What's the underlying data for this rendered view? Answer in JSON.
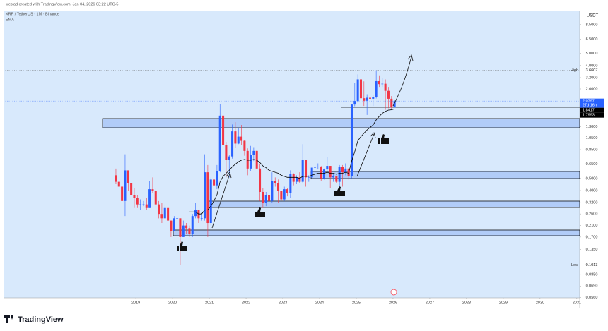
{
  "header": {
    "credit": "wesiad created with TradingView.com, Jan 04, 2026 03:22 UTC-5",
    "symbol": "XRP / TetherUS · 1M · Binance"
  },
  "footer": {
    "brand": "TradingView"
  },
  "chart_data": {
    "type": "candlestick",
    "currency": "USDT",
    "log_scale": true,
    "x": [
      "2018-06",
      "2018-07",
      "2018-08",
      "2018-09",
      "2018-10",
      "2018-11",
      "2018-12",
      "2019-01",
      "2019-02",
      "2019-03",
      "2019-04",
      "2019-05",
      "2019-06",
      "2019-07",
      "2019-08",
      "2019-09",
      "2019-10",
      "2019-11",
      "2019-12",
      "2020-01",
      "2020-02",
      "2020-03",
      "2020-04",
      "2020-05",
      "2020-06",
      "2020-07",
      "2020-08",
      "2020-09",
      "2020-10",
      "2020-11",
      "2020-12",
      "2021-01",
      "2021-02",
      "2021-03",
      "2021-04",
      "2021-05",
      "2021-06",
      "2021-07",
      "2021-08",
      "2021-09",
      "2021-10",
      "2021-11",
      "2021-12",
      "2022-01",
      "2022-02",
      "2022-03",
      "2022-04",
      "2022-05",
      "2022-06",
      "2022-07",
      "2022-08",
      "2022-09",
      "2022-10",
      "2022-11",
      "2022-12",
      "2023-01",
      "2023-02",
      "2023-03",
      "2023-04",
      "2023-05",
      "2023-06",
      "2023-07",
      "2023-08",
      "2023-09",
      "2023-10",
      "2023-11",
      "2023-12",
      "2024-01",
      "2024-02",
      "2024-03",
      "2024-04",
      "2024-05",
      "2024-06",
      "2024-07",
      "2024-08",
      "2024-09",
      "2024-10",
      "2024-11",
      "2024-12",
      "2025-01",
      "2025-02",
      "2025-03",
      "2025-04",
      "2025-05",
      "2025-06",
      "2025-07",
      "2025-08",
      "2025-09",
      "2025-10",
      "2025-11",
      "2025-12",
      "2026-01"
    ],
    "open": [
      0.53,
      0.47,
      0.43,
      0.33,
      0.58,
      0.46,
      0.37,
      0.35,
      0.31,
      0.31,
      0.31,
      0.29,
      0.41,
      0.4,
      0.31,
      0.26,
      0.24,
      0.29,
      0.23,
      0.19,
      0.24,
      0.24,
      0.17,
      0.21,
      0.2,
      0.18,
      0.25,
      0.28,
      0.24,
      0.24,
      0.56,
      0.22,
      0.49,
      0.44,
      0.57,
      1.59,
      0.92,
      0.7,
      0.75,
      1.19,
      0.95,
      1.08,
      1.0,
      0.83,
      0.6,
      0.77,
      0.83,
      0.6,
      0.39,
      0.32,
      0.37,
      0.33,
      0.48,
      0.46,
      0.4,
      0.34,
      0.41,
      0.38,
      0.54,
      0.47,
      0.51,
      0.47,
      0.7,
      0.51,
      0.51,
      0.61,
      0.62,
      0.62,
      0.5,
      0.59,
      0.63,
      0.51,
      0.52,
      0.47,
      0.62,
      0.56,
      0.6,
      0.52,
      1.95,
      2.08,
      3.1,
      2.19,
      2.09,
      2.21,
      2.17,
      2.23,
      3.0,
      2.84,
      2.86,
      2.51,
      2.17,
      1.85
    ],
    "high": [
      0.6,
      0.51,
      0.43,
      0.78,
      0.58,
      0.56,
      0.42,
      0.37,
      0.34,
      0.33,
      0.35,
      0.48,
      0.51,
      0.42,
      0.33,
      0.32,
      0.31,
      0.31,
      0.23,
      0.25,
      0.35,
      0.24,
      0.23,
      0.22,
      0.21,
      0.26,
      0.32,
      0.28,
      0.26,
      0.78,
      0.64,
      0.51,
      0.65,
      0.64,
      1.96,
      1.76,
      0.98,
      0.77,
      1.35,
      1.41,
      1.27,
      1.34,
      1.02,
      0.87,
      0.91,
      0.89,
      0.84,
      0.65,
      0.42,
      0.39,
      0.38,
      0.56,
      0.51,
      0.49,
      0.4,
      0.43,
      0.42,
      0.58,
      0.55,
      0.53,
      0.56,
      0.94,
      0.7,
      0.53,
      0.59,
      0.74,
      0.66,
      0.63,
      0.6,
      0.74,
      0.63,
      0.55,
      0.52,
      0.64,
      0.64,
      0.66,
      0.6,
      1.98,
      2.9,
      3.4,
      3.15,
      2.99,
      2.36,
      2.65,
      2.34,
      3.6607,
      3.34,
      3.18,
      3.1,
      2.7,
      2.28,
      2.11
    ],
    "low": [
      0.45,
      0.42,
      0.25,
      0.25,
      0.4,
      0.35,
      0.29,
      0.29,
      0.28,
      0.3,
      0.28,
      0.29,
      0.38,
      0.29,
      0.24,
      0.22,
      0.24,
      0.2,
      0.17,
      0.19,
      0.23,
      0.1013,
      0.17,
      0.18,
      0.17,
      0.17,
      0.24,
      0.22,
      0.23,
      0.23,
      0.17,
      0.21,
      0.36,
      0.41,
      0.56,
      0.65,
      0.51,
      0.51,
      0.72,
      0.88,
      0.94,
      0.93,
      0.76,
      0.53,
      0.57,
      0.69,
      0.59,
      0.33,
      0.29,
      0.3,
      0.32,
      0.32,
      0.43,
      0.32,
      0.33,
      0.33,
      0.36,
      0.35,
      0.44,
      0.45,
      0.46,
      0.46,
      0.43,
      0.47,
      0.5,
      0.59,
      0.59,
      0.48,
      0.49,
      0.56,
      0.42,
      0.47,
      0.46,
      0.38,
      0.43,
      0.53,
      0.49,
      0.5,
      1.89,
      2.02,
      1.77,
      1.9,
      1.61,
      2.07,
      1.9,
      2.18,
      2.7,
      2.7,
      1.77,
      1.82,
      1.8,
      1.84
    ],
    "close": [
      0.47,
      0.43,
      0.33,
      0.58,
      0.46,
      0.37,
      0.35,
      0.31,
      0.31,
      0.31,
      0.29,
      0.41,
      0.4,
      0.31,
      0.26,
      0.24,
      0.29,
      0.23,
      0.19,
      0.24,
      0.24,
      0.17,
      0.21,
      0.2,
      0.18,
      0.25,
      0.28,
      0.24,
      0.24,
      0.56,
      0.22,
      0.49,
      0.44,
      0.57,
      1.59,
      0.92,
      0.7,
      0.75,
      1.19,
      0.95,
      1.08,
      1.0,
      0.83,
      0.6,
      0.77,
      0.83,
      0.6,
      0.39,
      0.32,
      0.37,
      0.33,
      0.48,
      0.46,
      0.4,
      0.34,
      0.41,
      0.38,
      0.54,
      0.47,
      0.51,
      0.47,
      0.7,
      0.51,
      0.51,
      0.61,
      0.62,
      0.62,
      0.5,
      0.59,
      0.63,
      0.51,
      0.52,
      0.47,
      0.62,
      0.56,
      0.6,
      0.52,
      1.95,
      2.08,
      3.1,
      2.19,
      2.09,
      2.21,
      2.17,
      2.23,
      3.0,
      2.84,
      2.86,
      2.51,
      2.17,
      1.85,
      2.0797
    ],
    "ema": {
      "name": "EMA",
      "color": "#000000",
      "values": [
        null,
        null,
        null,
        null,
        null,
        null,
        null,
        null,
        null,
        null,
        null,
        null,
        null,
        null,
        null,
        null,
        null,
        null,
        null,
        null,
        null,
        null,
        null,
        null,
        0.27,
        0.27,
        0.27,
        0.26,
        0.26,
        0.28,
        0.28,
        0.3,
        0.33,
        0.37,
        0.47,
        0.52,
        0.55,
        0.58,
        0.62,
        0.65,
        0.68,
        0.7,
        0.71,
        0.7,
        0.7,
        0.71,
        0.7,
        0.67,
        0.63,
        0.61,
        0.58,
        0.57,
        0.56,
        0.55,
        0.53,
        0.52,
        0.51,
        0.51,
        0.51,
        0.51,
        0.5,
        0.52,
        0.52,
        0.52,
        0.53,
        0.54,
        0.55,
        0.55,
        0.55,
        0.56,
        0.55,
        0.55,
        0.54,
        0.55,
        0.55,
        0.56,
        0.55,
        0.69,
        0.82,
        1.0,
        1.08,
        1.15,
        1.22,
        1.28,
        1.34,
        1.47,
        1.57,
        1.66,
        1.72,
        1.76,
        1.77,
        1.8
      ]
    },
    "up_color": "#2962ff",
    "down_color": "#f23645",
    "xlim": [
      2015.4,
      2031.08
    ],
    "xticks": [
      2019,
      2020,
      2021,
      2022,
      2023,
      2024,
      2025,
      2026,
      2027,
      2028,
      2029,
      2030,
      2031
    ],
    "ylim": [
      0.0555,
      11
    ],
    "yticks": [
      {
        "value": 8.5,
        "label": "8.5000"
      },
      {
        "value": 6.5,
        "label": "6.5000"
      },
      {
        "value": 5,
        "label": "5.0000"
      },
      {
        "value": 4,
        "label": "4.0000"
      },
      {
        "value": 3.2,
        "label": "3.2000"
      },
      {
        "value": 2.6,
        "label": "2.6000"
      },
      {
        "value": 1.3,
        "label": "1.3000"
      },
      {
        "value": 1.05,
        "label": "1.0500"
      },
      {
        "value": 0.85,
        "label": "0.8500"
      },
      {
        "value": 0.65,
        "label": "0.6500"
      },
      {
        "value": 0.5,
        "label": "0.5000"
      },
      {
        "value": 0.4,
        "label": "0.4000"
      },
      {
        "value": 0.32,
        "label": "0.3200"
      },
      {
        "value": 0.26,
        "label": "0.2600"
      },
      {
        "value": 0.21,
        "label": "0.2100"
      },
      {
        "value": 0.17,
        "label": "0.1700"
      },
      {
        "value": 0.135,
        "label": "0.1350"
      },
      {
        "value": 0.085,
        "label": "0.0850"
      },
      {
        "value": 0.069,
        "label": "0.0690"
      },
      {
        "value": 0.056,
        "label": "0.0560"
      }
    ],
    "extremes": [
      {
        "label": "High",
        "value": 3.6607
      },
      {
        "label": "Low",
        "value": 0.1013
      }
    ],
    "price_labels": [
      {
        "value": 2.0797,
        "countdown": "27d 16h"
      },
      {
        "value": 1.8417
      },
      {
        "value": 1.7993
      }
    ]
  }
}
